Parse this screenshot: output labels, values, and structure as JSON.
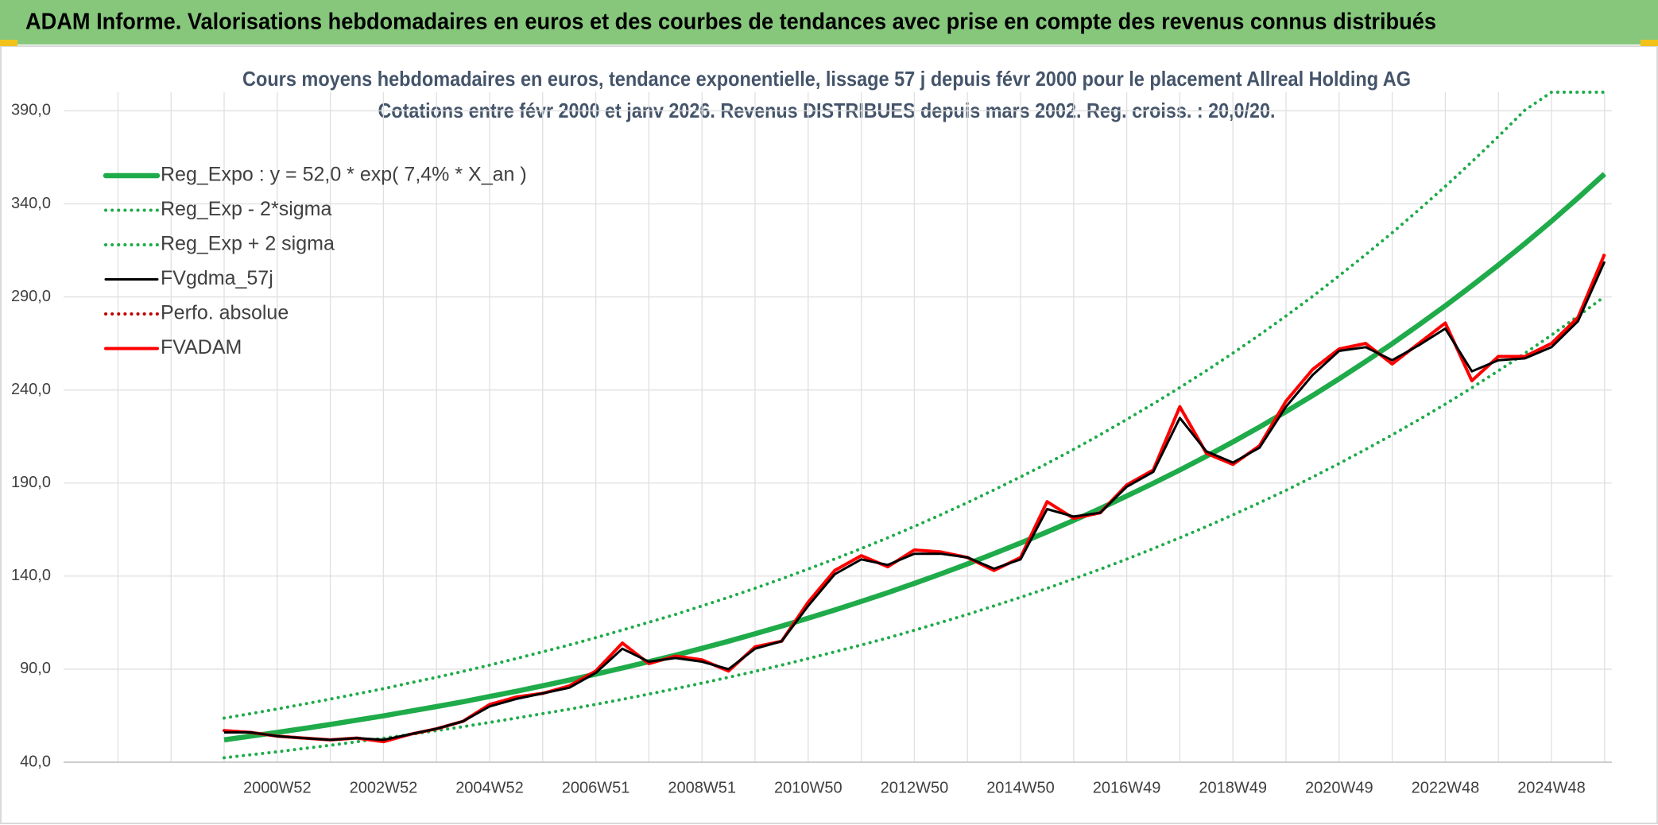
{
  "header": {
    "title": "ADAM Informe. Valorisations hebdomadaires en euros et des courbes de tendances avec prise en compte des revenus connus distribués"
  },
  "chart_data": {
    "type": "line",
    "title": "Cours moyens hebdomadaires en euros, tendance exponentielle, lissage 57 j depuis févr 2000 pour le placement Allreal Holding AG",
    "subtitle": "Cotations entre févr 2000 et janv 2026. Revenus DISTRIBUES depuis mars 2002. Reg. croiss. : 20,0/20.",
    "categories": [
      null,
      null,
      "2000W52",
      null,
      null,
      null,
      "2002W52",
      null,
      null,
      null,
      "2004W52",
      null,
      null,
      null,
      "2006W51",
      null,
      null,
      null,
      "2008W51",
      null,
      null,
      null,
      "2010W50",
      null,
      null,
      null,
      "2012W50",
      null,
      null,
      null,
      "2014W50",
      null,
      null,
      null,
      "2016W49",
      null,
      null,
      null,
      "2018W49",
      null,
      null,
      null,
      "2020W49",
      null,
      null,
      null,
      "2022W48",
      null,
      null,
      null,
      "2024W48",
      null,
      null
    ],
    "ylim": [
      40,
      400
    ],
    "yticks": [
      {
        "value": 40,
        "label": "40,0"
      },
      {
        "value": 90,
        "label": "90,0"
      },
      {
        "value": 140,
        "label": "140,0"
      },
      {
        "value": 190,
        "label": "190,0"
      },
      {
        "value": 240,
        "label": "240,0"
      },
      {
        "value": 290,
        "label": "290,0"
      },
      {
        "value": 340,
        "label": "340,0"
      },
      {
        "value": 390,
        "label": "390,0"
      }
    ],
    "grid": true,
    "legend": "top-left",
    "series": [
      {
        "name": "Reg_Expo : y = 52,0 * exp( 7,4% *  X_an )",
        "color": "#1fab4a",
        "style": "solid",
        "values": [
          52.0,
          54.0,
          56.0,
          58.1,
          60.3,
          62.6,
          64.9,
          67.4,
          69.9,
          72.5,
          75.3,
          78.1,
          81.1,
          84.1,
          87.3,
          90.6,
          94.0,
          97.5,
          101.2,
          105.0,
          109.0,
          113.1,
          117.4,
          121.8,
          126.4,
          131.1,
          136.1,
          141.2,
          146.5,
          152.1,
          157.8,
          163.7,
          169.9,
          176.3,
          183.0,
          189.9,
          197.0,
          204.4,
          212.1,
          220.1,
          228.4,
          237.0,
          246.0,
          255.3,
          264.9,
          274.9,
          285.2,
          296.0,
          307.1,
          318.7,
          330.7,
          343.2,
          356.1
        ]
      },
      {
        "name": "Reg_Exp - 2*sigma",
        "color": "#1fab4a",
        "style": "dotted",
        "values": [
          42.4,
          44.0,
          45.6,
          47.4,
          49.1,
          51.0,
          52.9,
          54.9,
          57.0,
          59.1,
          61.4,
          63.7,
          66.1,
          68.5,
          71.1,
          73.8,
          76.6,
          79.5,
          82.5,
          85.6,
          88.8,
          92.2,
          95.7,
          99.3,
          103.0,
          106.8,
          110.9,
          115.1,
          119.4,
          124.0,
          128.6,
          133.4,
          138.5,
          143.7,
          149.1,
          154.8,
          160.6,
          166.6,
          172.9,
          179.4,
          186.1,
          193.2,
          200.5,
          208.1,
          215.9,
          224.0,
          232.4,
          241.2,
          250.3,
          259.7,
          269.5,
          279.7,
          290.2
        ]
      },
      {
        "name": "Reg_Exp + 2 sigma",
        "color": "#1fab4a",
        "style": "dotted",
        "values": [
          63.7,
          66.1,
          68.6,
          71.2,
          73.9,
          76.7,
          79.5,
          82.6,
          85.6,
          88.8,
          92.2,
          95.7,
          99.3,
          103.0,
          106.9,
          111.0,
          115.2,
          119.4,
          124.0,
          128.6,
          133.5,
          138.5,
          143.8,
          149.2,
          154.8,
          160.6,
          166.7,
          173.0,
          179.5,
          186.3,
          193.3,
          200.5,
          208.1,
          216.0,
          224.2,
          232.6,
          241.3,
          250.4,
          259.8,
          269.6,
          279.8,
          290.3,
          301.4,
          312.7,
          324.5,
          336.8,
          349.4,
          362.6,
          376.2,
          390.4,
          400,
          400,
          400
        ]
      },
      {
        "name": "FVgdma_57j",
        "color": "#000000",
        "style": "solid",
        "values": [
          56,
          56,
          54,
          53,
          52,
          53,
          52,
          55,
          58,
          62,
          70,
          74,
          77,
          80,
          88,
          101,
          94,
          96,
          94,
          90,
          101,
          105,
          124,
          141,
          149,
          146,
          152,
          152,
          150,
          144,
          149,
          176,
          172,
          174,
          188,
          196,
          225,
          207,
          201,
          209,
          231,
          248,
          261,
          263,
          256,
          264,
          273,
          250,
          256,
          257,
          263,
          277,
          309
        ]
      },
      {
        "name": "Perfo. absolue",
        "color": "#c00000",
        "style": "dotted",
        "values": [
          57,
          56,
          54,
          53,
          52,
          53,
          51,
          55,
          58,
          62,
          71,
          75,
          77,
          81,
          89,
          104,
          93,
          97,
          95,
          89,
          102,
          105,
          126,
          143,
          151,
          145,
          154,
          153,
          150,
          143,
          150,
          180,
          171,
          174,
          189,
          197,
          231,
          206,
          200,
          210,
          234,
          251,
          262,
          265,
          254,
          265,
          276,
          245,
          258,
          258,
          265,
          279,
          313
        ]
      },
      {
        "name": "FVADAM",
        "color": "#ff0000",
        "style": "solid",
        "values": [
          57,
          56,
          54,
          53,
          52,
          53,
          51,
          55,
          58,
          62,
          71,
          75,
          77,
          81,
          89,
          104,
          93,
          97,
          95,
          89,
          102,
          105,
          126,
          143,
          151,
          145,
          154,
          153,
          150,
          143,
          150,
          180,
          171,
          174,
          189,
          197,
          231,
          206,
          200,
          210,
          234,
          251,
          262,
          265,
          254,
          265,
          276,
          245,
          258,
          258,
          265,
          279,
          313
        ]
      }
    ]
  }
}
